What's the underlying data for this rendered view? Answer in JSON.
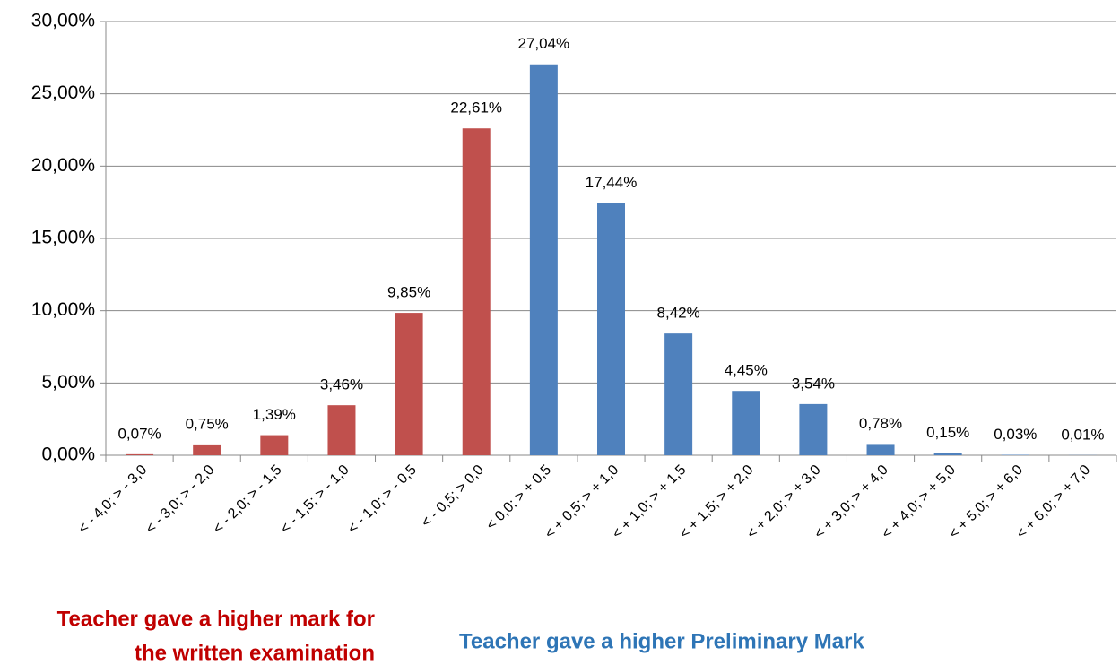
{
  "chart_data": {
    "type": "bar",
    "categories": [
      "< - 4,0; > - 3,0",
      "< - 3,0; > - 2,0",
      "< - 2,0; > - 1,5",
      "< - 1,5; > - 1,0",
      "< - 1,0; > - 0,5",
      "< - 0,5; > 0,0",
      "< 0,0; > + 0,5",
      "< + 0,5; > + 1,0",
      "< + 1,0; > + 1,5",
      "< + 1,5; > + 2,0",
      "< + 2,0; > + 3,0",
      "< + 3,0; > + 4,0",
      "< + 4,0; > + 5,0",
      "< + 5,0; > + 6,0",
      "< + 6,0; > + 7,0"
    ],
    "values": [
      0.07,
      0.75,
      1.39,
      3.46,
      9.85,
      22.61,
      27.04,
      17.44,
      8.42,
      4.45,
      3.54,
      0.78,
      0.15,
      0.03,
      0.01
    ],
    "value_labels": [
      "0,07%",
      "0,75%",
      "1,39%",
      "3,46%",
      "9,85%",
      "22,61%",
      "27,04%",
      "17,44%",
      "8,42%",
      "4,45%",
      "3,54%",
      "0,78%",
      "0,15%",
      "0,03%",
      "0,01%"
    ],
    "colors": [
      "#c0504d",
      "#c0504d",
      "#c0504d",
      "#c0504d",
      "#c0504d",
      "#c0504d",
      "#4f81bd",
      "#4f81bd",
      "#4f81bd",
      "#4f81bd",
      "#4f81bd",
      "#4f81bd",
      "#4f81bd",
      "#4f81bd",
      "#4f81bd"
    ],
    "ylim": [
      0,
      30
    ],
    "yticks": [
      {
        "value": 0,
        "label": "0,00%"
      },
      {
        "value": 5,
        "label": "5,00%"
      },
      {
        "value": 10,
        "label": "10,00%"
      },
      {
        "value": 15,
        "label": "15,00%"
      },
      {
        "value": 20,
        "label": "20,00%"
      },
      {
        "value": 25,
        "label": "25,00%"
      },
      {
        "value": 30,
        "label": "30,00%"
      }
    ],
    "grid": true,
    "annotations": [
      {
        "lines": [
          "Teacher gave a higher mark for",
          "the written examination"
        ],
        "color": "#c00000"
      },
      {
        "lines": [
          "Teacher gave a higher Preliminary Mark"
        ],
        "color": "#2e75b6"
      }
    ]
  }
}
